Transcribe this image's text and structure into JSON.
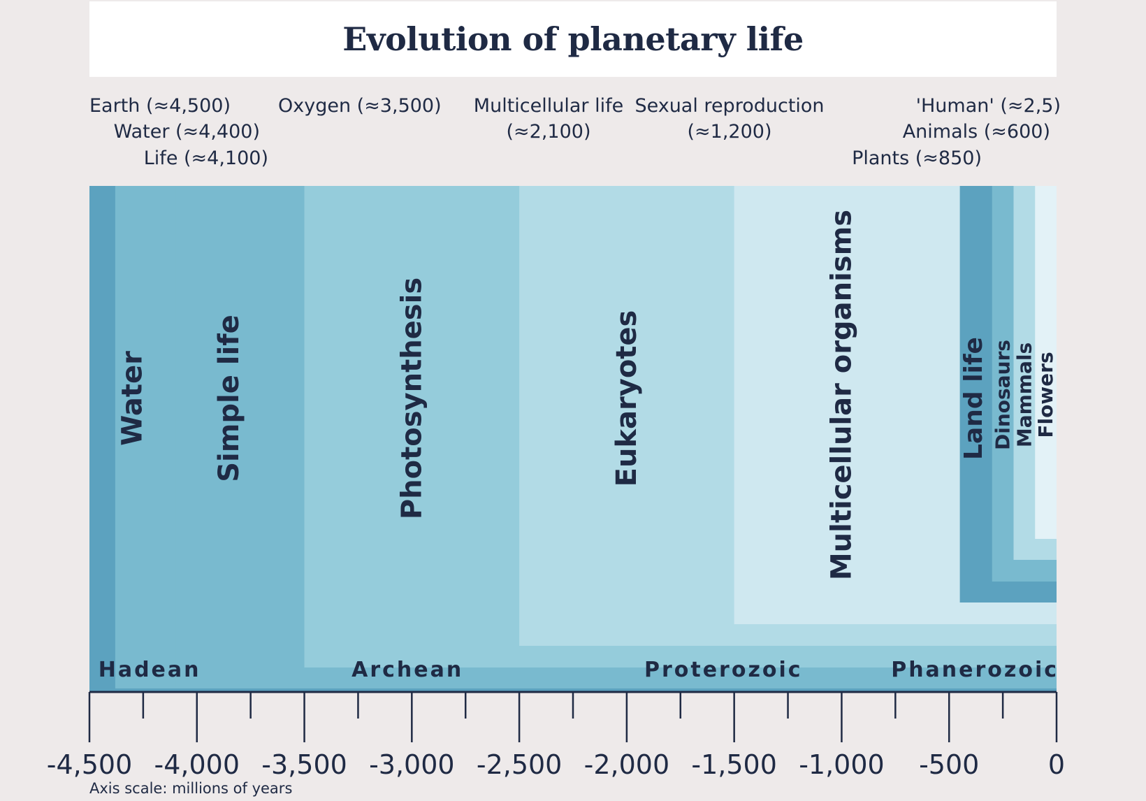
{
  "title": "Evolution of planetary life",
  "axis_note": "Axis scale: millions of years",
  "colors": {
    "text": "#1f2a44",
    "background": "#eeeaea",
    "bands": [
      "#5ca2bf",
      "#79bacf",
      "#95ccdb",
      "#b2dbe6",
      "#cfe8f0",
      "#e3f2f7"
    ]
  },
  "chart_data": {
    "type": "area",
    "title": "Evolution of planetary life",
    "xlabel": "Axis scale: millions of years",
    "xlim": [
      -4500,
      0
    ],
    "x_ticks": [
      -4500,
      -4000,
      -3500,
      -3000,
      -2500,
      -2000,
      -1500,
      -1000,
      -500,
      0
    ],
    "x_tick_labels": [
      "-4,500",
      "-4,000",
      "-3,500",
      "-3,000",
      "-2,500",
      "-2,000",
      "-1,500",
      "-1,000",
      "-500",
      "0"
    ],
    "x_minor_ticks": [
      -4250,
      -3750,
      -3250,
      -2750,
      -2250,
      -1750,
      -1250,
      -750,
      -250
    ],
    "periods": [
      {
        "name": "Water",
        "start": -4380,
        "color": "#79bacf"
      },
      {
        "name": "Simple life",
        "start": -4100,
        "color": "#79bacf"
      },
      {
        "name": "Photosynthesis",
        "start": -3500,
        "color": "#95ccdb"
      },
      {
        "name": "Eukaryotes",
        "start": -2500,
        "color": "#b2dbe6"
      },
      {
        "name": "Multicellular organisms",
        "start": -1500,
        "color": "#cfe8f0"
      },
      {
        "name": "Land life",
        "start": -450,
        "color": "#5ca2bf"
      },
      {
        "name": "Dinosaurs",
        "start": -300,
        "color": "#79bacf"
      },
      {
        "name": "Mammals",
        "start": -200,
        "color": "#b2dbe6"
      },
      {
        "name": "Flowers",
        "start": -100,
        "color": "#e3f2f7"
      }
    ],
    "eons": [
      {
        "name": "Hadean",
        "start": -4500
      },
      {
        "name": "Archean",
        "start": -4000
      },
      {
        "name": "Proterozoic",
        "start": -2500
      },
      {
        "name": "Phanerozoic",
        "start": -540
      }
    ],
    "events": [
      {
        "label": "Earth (≈4,500)",
        "x": -4500
      },
      {
        "label": "Water (≈4,400)",
        "x": -4400
      },
      {
        "label": "Life (≈4,100)",
        "x": -4100
      },
      {
        "label": "Oxygen (≈3,500)",
        "x": -3500
      },
      {
        "label": "Multicellular life\n(≈2,100)",
        "x": -2100
      },
      {
        "label": "Sexual reproduction\n(≈1,200)",
        "x": -1200
      },
      {
        "label": "'Human' (≈2,5)",
        "x": -2.5
      },
      {
        "label": "Animals (≈600)",
        "x": -600
      },
      {
        "label": "Plants (≈850)",
        "x": -850
      }
    ]
  }
}
